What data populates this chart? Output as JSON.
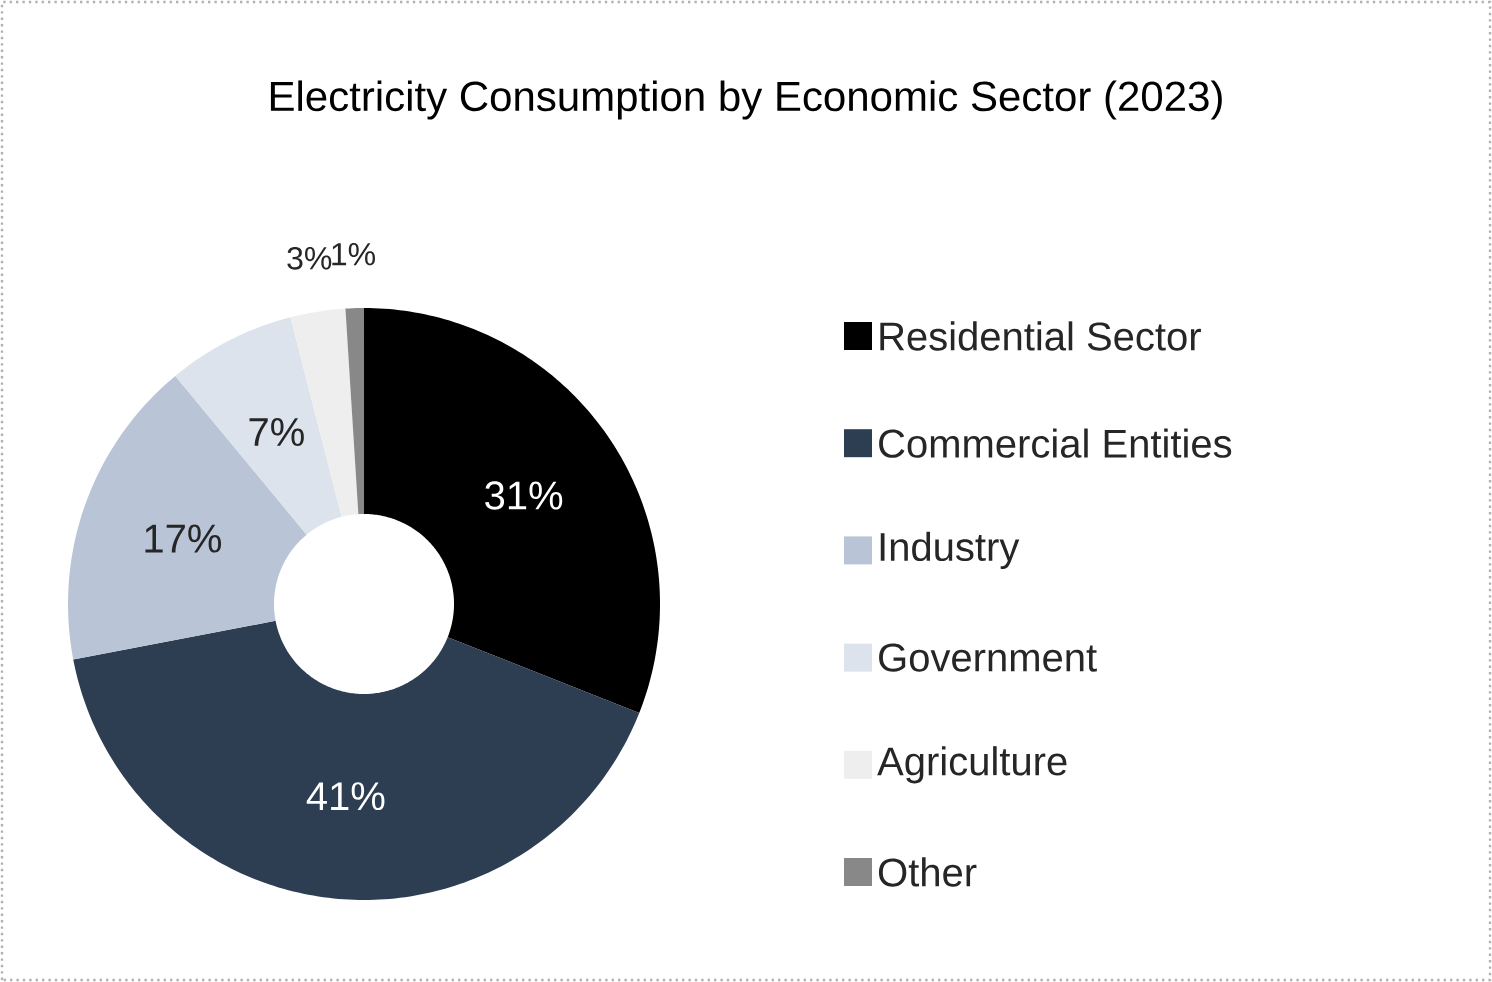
{
  "chart_data": {
    "type": "donut",
    "title": "Electricity Consumption by Economic Sector (2023)",
    "categories": [
      "Residential Sector",
      "Commercial Entities",
      "Industry",
      "Government",
      "Agriculture",
      "Other"
    ],
    "values": [
      31,
      41,
      17,
      7,
      3,
      1
    ],
    "value_labels": [
      "31%",
      "41%",
      "17%",
      "7%",
      "3%",
      "1%"
    ],
    "colors": [
      "#000000",
      "#2d3e52",
      "#b9c5d6",
      "#dce3ec",
      "#eeeeee",
      "#888888"
    ],
    "legend": "right"
  }
}
